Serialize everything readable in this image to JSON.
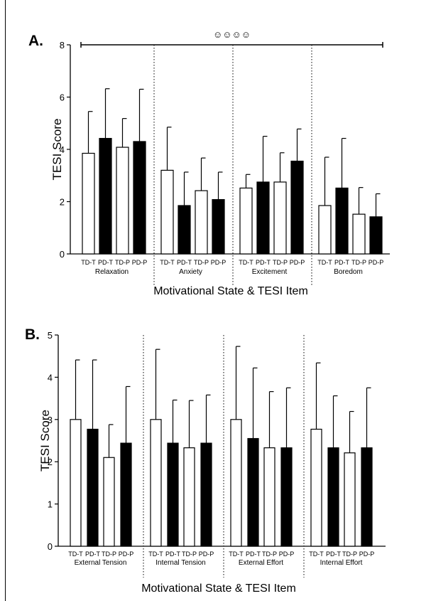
{
  "chart_data": [
    {
      "type": "bar",
      "panel_label": "A.",
      "ylabel": "TESI Score",
      "xlabel": "Motivational State & TESI Item",
      "ylim": [
        0,
        8
      ],
      "yticks": [
        "0",
        "2",
        "4",
        "6",
        "8"
      ],
      "significance_label": "☺☺☺☺",
      "bar_labels": [
        "TD-T",
        "PD-T",
        "TD-P",
        "PD-P"
      ],
      "bar_colors": [
        "#ffffff",
        "#000000",
        "#ffffff",
        "#000000"
      ],
      "groups": [
        {
          "name": "Relaxation",
          "values": [
            3.85,
            4.42,
            4.08,
            4.3
          ],
          "errors": [
            1.6,
            1.9,
            1.1,
            2.0
          ]
        },
        {
          "name": "Anxiety",
          "values": [
            3.2,
            1.85,
            2.42,
            2.08
          ],
          "errors": [
            1.65,
            1.28,
            1.25,
            1.05
          ]
        },
        {
          "name": "Excitement",
          "values": [
            2.52,
            2.75,
            2.75,
            3.55
          ],
          "errors": [
            0.52,
            1.75,
            1.12,
            1.23
          ]
        },
        {
          "name": "Boredom",
          "values": [
            1.85,
            2.52,
            1.52,
            1.42
          ],
          "errors": [
            1.85,
            1.9,
            1.02,
            0.88
          ]
        }
      ]
    },
    {
      "type": "bar",
      "panel_label": "B.",
      "ylabel": "TESI Score",
      "xlabel": "Motivational State & TESI Item",
      "ylim": [
        0,
        5
      ],
      "yticks": [
        "0",
        "1",
        "2",
        "3",
        "4",
        "5"
      ],
      "bar_labels": [
        "TD-T",
        "PD-T",
        "TD-P",
        "PD-P"
      ],
      "bar_colors": [
        "#ffffff",
        "#000000",
        "#ffffff",
        "#000000"
      ],
      "groups": [
        {
          "name": "External Tension",
          "values": [
            3.0,
            2.77,
            2.1,
            2.44
          ],
          "errors": [
            1.41,
            1.64,
            0.78,
            1.34
          ]
        },
        {
          "name": "Internal Tension",
          "values": [
            3.0,
            2.44,
            2.33,
            2.44
          ],
          "errors": [
            1.66,
            1.02,
            1.12,
            1.14
          ]
        },
        {
          "name": "External Effort",
          "values": [
            3.0,
            2.55,
            2.33,
            2.33
          ],
          "errors": [
            1.73,
            1.67,
            1.33,
            1.42
          ]
        },
        {
          "name": "Internal Effort",
          "values": [
            2.77,
            2.33,
            2.21,
            2.33
          ],
          "errors": [
            1.57,
            1.23,
            0.98,
            1.42
          ]
        }
      ]
    }
  ]
}
